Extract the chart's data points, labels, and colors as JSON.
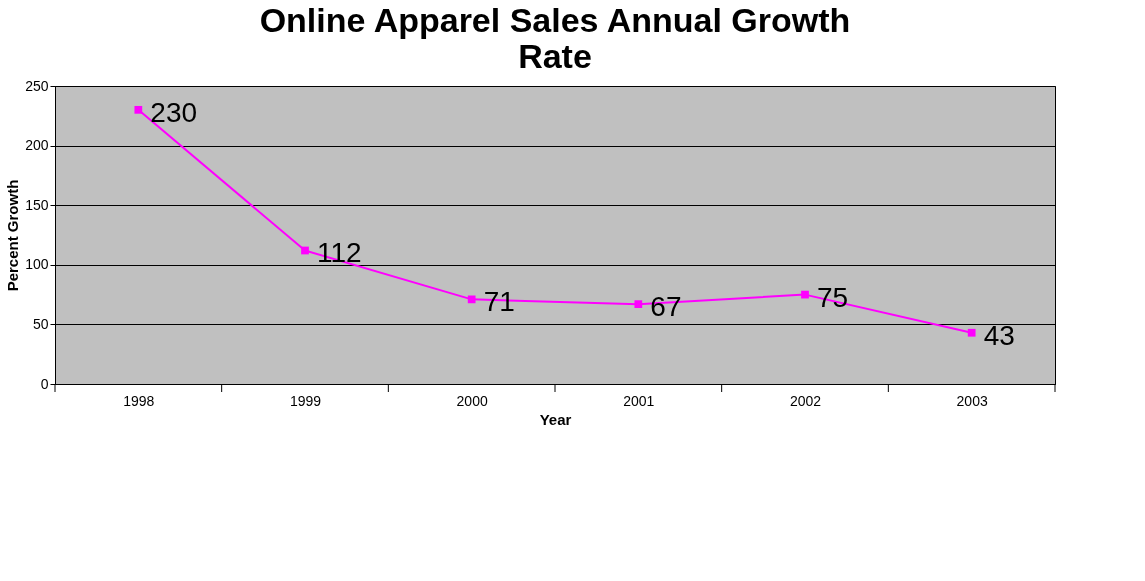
{
  "chart_data": {
    "type": "line",
    "title": [
      "Online Apparel Sales Annual Growth",
      "Rate"
    ],
    "xlabel": "Year",
    "ylabel": "Percent Growth",
    "categories": [
      "1998",
      "1999",
      "2000",
      "2001",
      "2002",
      "2003"
    ],
    "series": [
      {
        "color": "#ff00ff",
        "values": [
          230,
          112,
          71,
          67,
          75,
          43
        ]
      }
    ],
    "ylim": [
      0,
      250
    ],
    "yticks": [
      0,
      50,
      100,
      150,
      200,
      250
    ],
    "grid": "y",
    "marker": "square",
    "line_style": "solid",
    "data_labels": true
  }
}
